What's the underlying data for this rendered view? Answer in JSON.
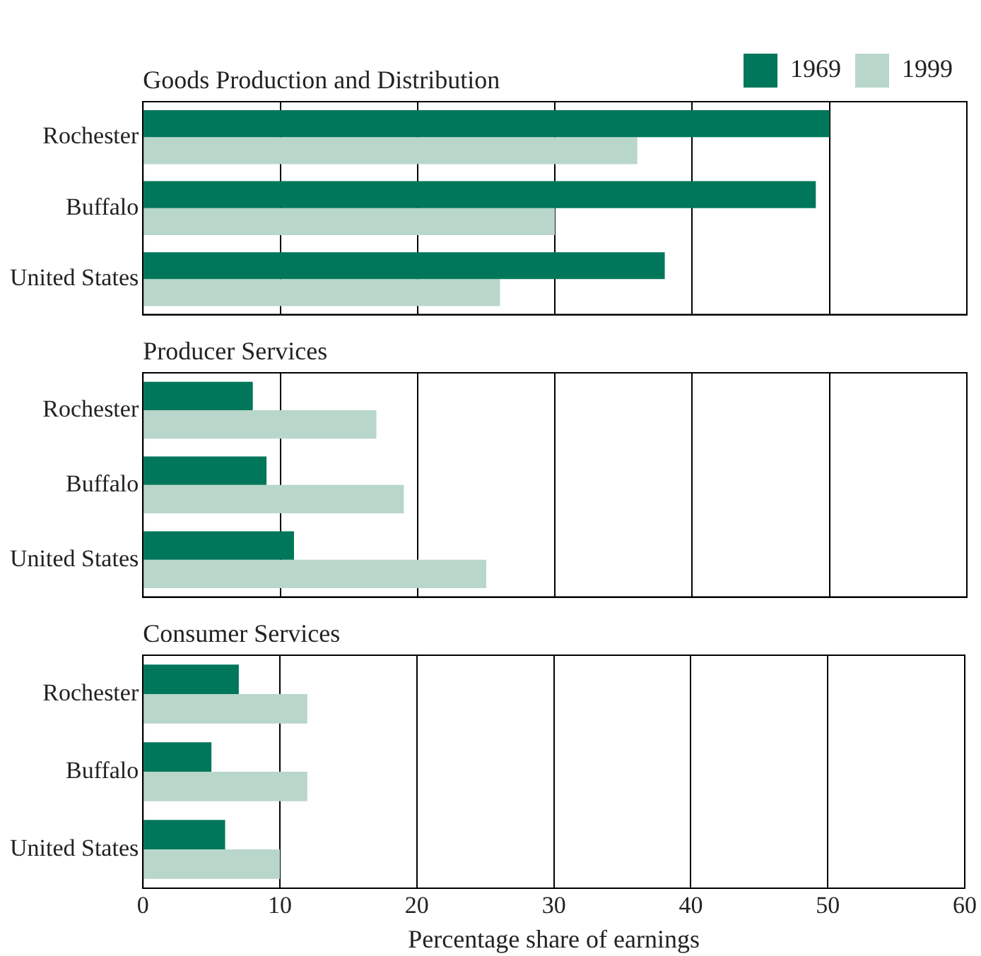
{
  "chart_data": [
    {
      "type": "bar",
      "orientation": "horizontal",
      "title": "Goods Production and Distribution",
      "categories": [
        "Rochester",
        "Buffalo",
        "United States"
      ],
      "series": [
        {
          "name": "1969",
          "color": "#00775a",
          "values": [
            50,
            49,
            38
          ]
        },
        {
          "name": "1999",
          "color": "#b9d6cb",
          "values": [
            36,
            30,
            26
          ]
        }
      ],
      "xlim": [
        0,
        60
      ],
      "xticks": [
        0,
        10,
        20,
        30,
        40,
        50,
        60
      ],
      "grid": "x",
      "legend": "top right",
      "tick_labels": "y"
    },
    {
      "type": "bar",
      "orientation": "horizontal",
      "title": "Producer Services",
      "categories": [
        "Rochester",
        "Buffalo",
        "United States"
      ],
      "series": [
        {
          "color": "#00775a",
          "values": [
            8,
            9,
            11
          ]
        },
        {
          "color": "#b9d6cb",
          "values": [
            17,
            19,
            25
          ]
        }
      ],
      "xlim": [
        0,
        60
      ],
      "xticks": [
        0,
        10,
        20,
        30,
        40,
        50,
        60
      ],
      "grid": "x",
      "tick_labels": "y"
    },
    {
      "type": "bar",
      "orientation": "horizontal",
      "title": "Consumer Services",
      "categories": [
        "Rochester",
        "Buffalo",
        "United States"
      ],
      "series": [
        {
          "color": "#00775a",
          "values": [
            7,
            5,
            6
          ]
        },
        {
          "color": "#b9d6cb",
          "values": [
            12,
            12,
            10
          ]
        }
      ],
      "xlim": [
        0,
        60
      ],
      "xticks": [
        0,
        10,
        20,
        30,
        40,
        50,
        60
      ],
      "grid": "x",
      "xlabel": "Percentage share of earnings"
    }
  ]
}
